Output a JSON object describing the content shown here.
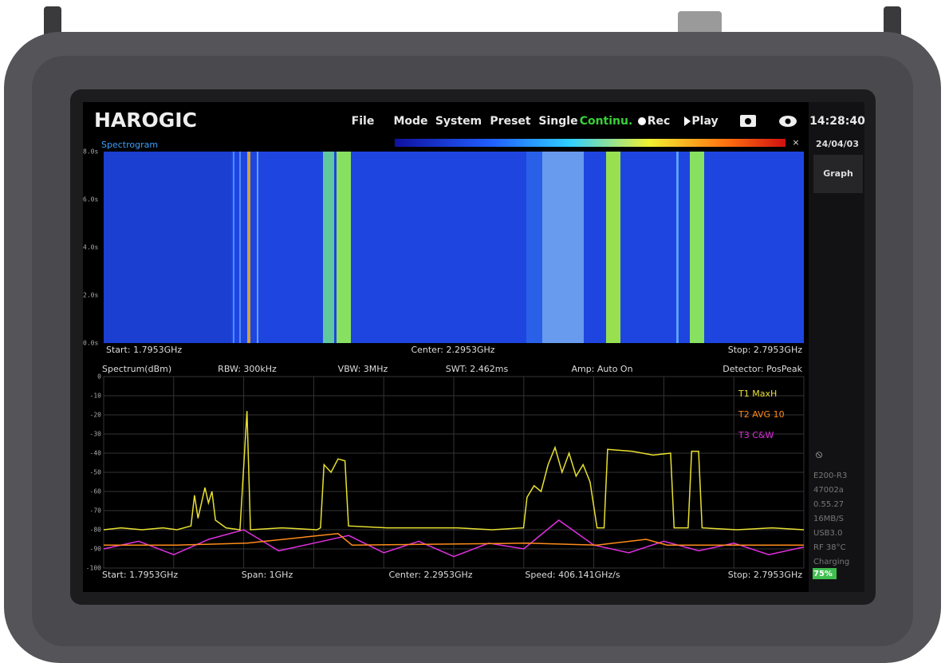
{
  "header": {
    "logo": "HAROGIC",
    "menu": [
      "File",
      "Mode",
      "System",
      "Preset",
      "Single",
      "Continu.",
      "Rec",
      "Play"
    ],
    "time": "14:28:40",
    "date": "24/04/03",
    "side_button": "Graph"
  },
  "spectrogram": {
    "title": "Spectrogram",
    "y_labels": [
      "8.0s",
      "6.0s",
      "4.0s",
      "2.0s",
      "0.0s"
    ],
    "footer": [
      "Start: 1.7953GHz",
      "Center: 2.2953GHz",
      "Stop: 2.7953GHz"
    ]
  },
  "spectrum_header": [
    "Spectrum(dBm)",
    "RBW: 300kHz",
    "VBW: 3MHz",
    "SWT: 2.462ms",
    "Amp: Auto On",
    "Detector: PosPeak"
  ],
  "chart_data": {
    "type": "line",
    "xlim": [
      1.7953,
      2.7953
    ],
    "ylim": [
      -100,
      0
    ],
    "yticks": [
      0,
      -10,
      -20,
      -30,
      -40,
      -50,
      -60,
      -70,
      -80,
      -90,
      -100
    ],
    "grid": true,
    "series": [
      {
        "name": "T3  C&W",
        "color": "#e030e0",
        "x": [
          1.7953,
          1.8453,
          1.8953,
          1.9453,
          1.9953,
          2.0453,
          2.0953,
          2.1453,
          2.1953,
          2.2453,
          2.2953,
          2.3453,
          2.3953,
          2.4453,
          2.4953,
          2.5453,
          2.5953,
          2.6453,
          2.6953,
          2.7453,
          2.7953
        ],
        "values": [
          -90,
          -86,
          -93,
          -85,
          -80,
          -91,
          -87,
          -83,
          -92,
          -86,
          -94,
          -87,
          -90,
          -75,
          -88,
          -92,
          -86,
          -91,
          -87,
          -93,
          -89
        ]
      },
      {
        "name": "T2  AVG 10",
        "color": "#ff8c1a",
        "x": [
          1.7953,
          1.9,
          2.0,
          2.13,
          2.15,
          2.4,
          2.5,
          2.57,
          2.6,
          2.7953
        ],
        "values": [
          -88,
          -88,
          -87,
          -82,
          -88,
          -87,
          -88,
          -85,
          -88,
          -88
        ]
      },
      {
        "name": "T1  MaxH",
        "color": "#e8e030",
        "x": [
          1.7953,
          1.82,
          1.85,
          1.88,
          1.9,
          1.92,
          1.925,
          1.93,
          1.94,
          1.945,
          1.95,
          1.955,
          1.97,
          1.99,
          2.0,
          2.005,
          2.05,
          2.1,
          2.105,
          2.11,
          2.12,
          2.13,
          2.14,
          2.145,
          2.2,
          2.3,
          2.35,
          2.395,
          2.4,
          2.41,
          2.42,
          2.43,
          2.44,
          2.45,
          2.46,
          2.47,
          2.48,
          2.49,
          2.5,
          2.51,
          2.515,
          2.55,
          2.58,
          2.605,
          2.61,
          2.63,
          2.635,
          2.645,
          2.65,
          2.7,
          2.75,
          2.7953
        ],
        "values": [
          -80,
          -79,
          -80,
          -79,
          -80,
          -78,
          -62,
          -74,
          -58,
          -66,
          -60,
          -75,
          -79,
          -80,
          -18,
          -80,
          -79,
          -80,
          -79,
          -46,
          -50,
          -43,
          -44,
          -78,
          -79,
          -79,
          -80,
          -79,
          -63,
          -57,
          -60,
          -46,
          -37,
          -50,
          -40,
          -52,
          -46,
          -55,
          -79,
          -79,
          -38,
          -39,
          -41,
          -40,
          -79,
          -79,
          -39,
          -39,
          -79,
          -80,
          -79,
          -80
        ]
      }
    ]
  },
  "spectrum_footer": [
    "Start: 1.7953GHz",
    "Span: 1GHz",
    "Center: 2.2953GHz",
    "Speed: 406.141GHz/s",
    "Stop: 2.7953GHz"
  ],
  "status": [
    "E200-R3",
    "47002a",
    "0.55.27",
    "16MB/S",
    "USB3.0",
    "RF 38°C",
    "Charging",
    "75%"
  ]
}
